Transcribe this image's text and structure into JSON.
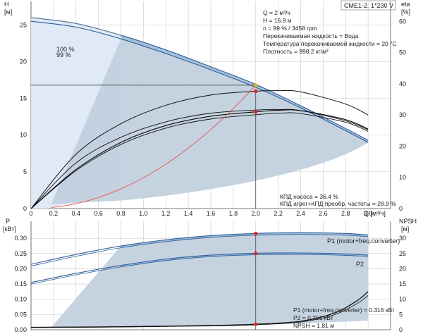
{
  "header": {
    "model_label": "CME1-2, 1*230 V"
  },
  "top_chart": {
    "axis_left": {
      "name": "H",
      "unit": "[м]",
      "ticks": [
        0,
        5,
        10,
        15,
        20,
        25
      ],
      "range": [
        0,
        28.2
      ]
    },
    "axis_right": {
      "name": "eta",
      "unit": "[%]",
      "ticks": [
        0,
        10,
        20,
        30,
        40,
        50,
        60
      ],
      "range": [
        0,
        66.4
      ]
    },
    "axis_x": {
      "unit": "Q [м³/ч]",
      "ticks": [
        "0",
        "0.2",
        "0.4",
        "0.6",
        "0.8",
        "1.0",
        "1.2",
        "1.4",
        "1.6",
        "1.8",
        "2.0",
        "2.2",
        "2.4",
        "2.6",
        "2.8",
        "3.0"
      ],
      "range": [
        0,
        3.2
      ]
    },
    "curve_labels": [
      "100 %",
      "99 %"
    ],
    "info_lines": [
      "Q = 2 м³/ч",
      "H = 16.8 м",
      "n = 99 % / 3458 rpm",
      "Перекачиваемая жидкость = Вода",
      "Температура перекачиваемой жидкости = 20 °C",
      "Плотность = 998.2 кг/м³"
    ],
    "eff_lines": [
      "КПД насоса = 36.4 %",
      "КПД агрег+КПД преобр. частоты = 28.9 %"
    ]
  },
  "bottom_chart": {
    "axis_left": {
      "name": "P",
      "unit": "[кВт]",
      "ticks": [
        "0.00",
        "0.05",
        "0.10",
        "0.15",
        "0.20",
        "0.25",
        "0.30"
      ],
      "range": [
        0,
        0.356
      ]
    },
    "axis_right": {
      "name": "NPSH",
      "unit": "[м]",
      "ticks": [
        0,
        5,
        10,
        15,
        20,
        25,
        30
      ],
      "range": [
        0,
        35.6
      ]
    },
    "curve_labels": [
      "P1 (motor+freq.converter)",
      "P2"
    ],
    "info_lines": [
      "P1 (motor+freq.converter) = 0.316 кВт",
      "P2 = 0.251 кВт",
      "NPSH = 1.81 м"
    ]
  },
  "chart_data": {
    "type": "line",
    "x_unit": "Q [м³/ч]",
    "duty_point": {
      "Q": 2.0,
      "H": 16.8,
      "n_percent": 99,
      "rpm": 3458,
      "eta_pump": 36.4,
      "eta_total": 28.9,
      "P1": 0.316,
      "P2": 0.251,
      "NPSH": 1.81
    },
    "series": [
      {
        "name": "100 %",
        "axis": "H",
        "x": [
          0,
          0.4,
          0.8,
          1.2,
          1.6,
          2.0,
          2.4,
          2.8,
          3.0
        ],
        "y": [
          26.0,
          25.2,
          23.6,
          21.6,
          19.3,
          16.9,
          14.0,
          10.9,
          9.3
        ]
      },
      {
        "name": "99 %",
        "axis": "H",
        "x": [
          0,
          0.4,
          0.8,
          1.2,
          1.6,
          2.0,
          2.4,
          2.8,
          3.0
        ],
        "y": [
          25.5,
          24.7,
          23.1,
          21.1,
          18.9,
          16.5,
          13.7,
          10.6,
          9.0
        ]
      },
      {
        "axis": "eta",
        "x": [
          0,
          0.4,
          0.8,
          1.2,
          1.6,
          2.0,
          2.2,
          2.4,
          2.8,
          3.0
        ],
        "y": [
          0,
          17.4,
          27.2,
          33.1,
          36.4,
          37.6,
          37.8,
          37.4,
          33.5,
          30.0
        ]
      },
      {
        "axis": "eta",
        "x": [
          0,
          0.4,
          0.8,
          1.2,
          1.6,
          2.0,
          2.2,
          2.4,
          2.8,
          3.0
        ],
        "y": [
          0,
          12.5,
          21.2,
          26.6,
          29.6,
          31.0,
          31.5,
          31.4,
          28.5,
          25.5
        ]
      },
      {
        "name": "P1 (motor+freq.converter)",
        "axis": "P",
        "x": [
          0,
          0.4,
          0.8,
          1.2,
          1.6,
          2.0,
          2.4,
          2.8,
          3.0
        ],
        "y": [
          0.215,
          0.247,
          0.275,
          0.295,
          0.309,
          0.316,
          0.319,
          0.316,
          0.311
        ]
      },
      {
        "name": "P2",
        "axis": "P",
        "x": [
          0,
          0.4,
          0.8,
          1.2,
          1.6,
          2.0,
          2.4,
          2.8,
          3.0
        ],
        "y": [
          0.155,
          0.185,
          0.211,
          0.232,
          0.245,
          0.251,
          0.252,
          0.249,
          0.245
        ]
      },
      {
        "name": "NPSH",
        "axis": "NPSH",
        "x": [
          0,
          0.8,
          1.6,
          2.0,
          2.4,
          2.7,
          2.9,
          3.0
        ],
        "y": [
          0.8,
          1.0,
          1.4,
          1.81,
          2.8,
          5.5,
          9.5,
          12.5
        ]
      }
    ]
  }
}
